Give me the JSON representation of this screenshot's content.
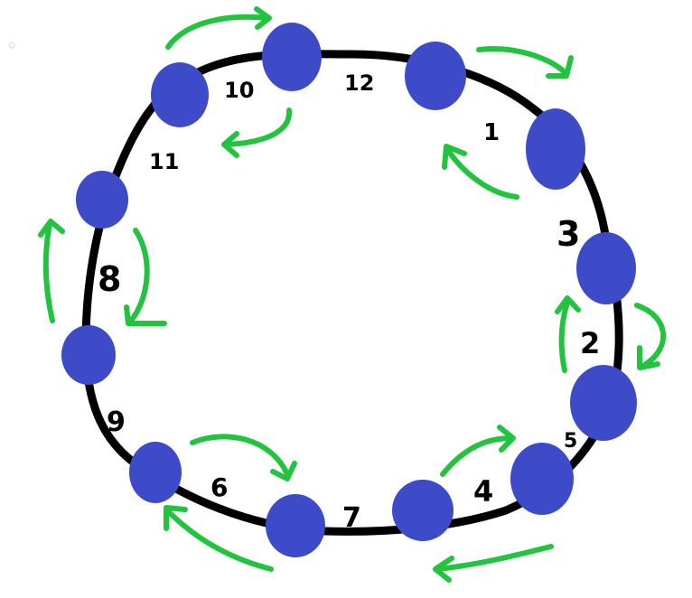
{
  "colors": {
    "ring": "#000000",
    "node": "#3d4bc9",
    "arrow": "#22c33f"
  },
  "edge_labels": [
    "10",
    "12",
    "1",
    "11",
    "3",
    "8",
    "2",
    "9",
    "5",
    "6",
    "7",
    "4"
  ]
}
